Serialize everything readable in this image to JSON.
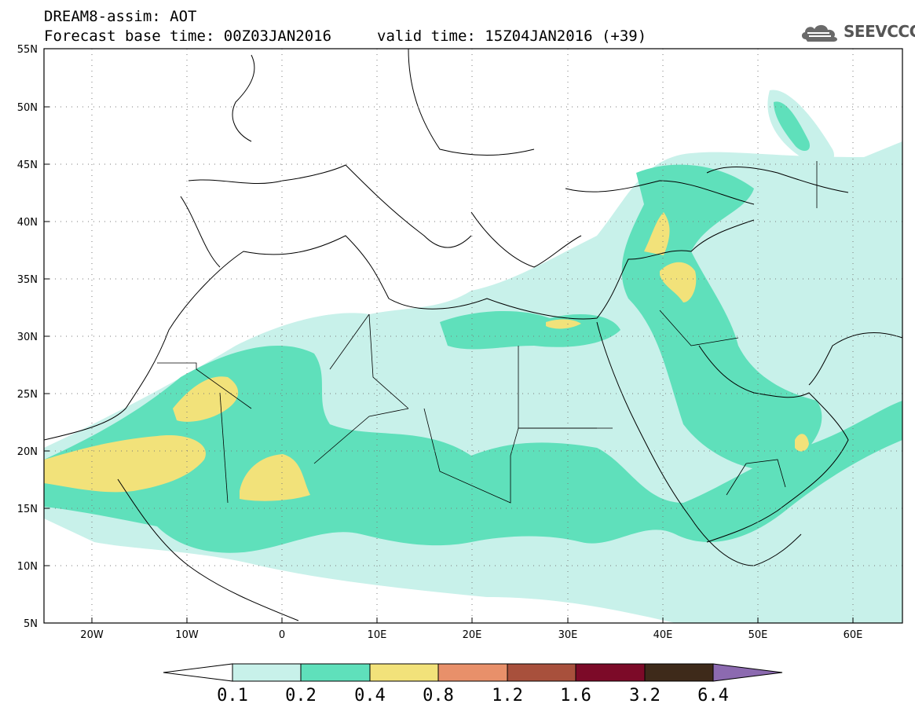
{
  "header": {
    "title": "DREAM8-assim: AOT",
    "base_time": "Forecast base time: 00Z03JAN2016",
    "valid_time": "valid time: 15Z04JAN2016 (+39)"
  },
  "logo": {
    "text": "SEEVCCC",
    "icon": "cloud-icon"
  },
  "map": {
    "lon_ticks": [
      "20W",
      "10W",
      "0",
      "10E",
      "20E",
      "30E",
      "40E",
      "50E",
      "60E"
    ],
    "lat_ticks": [
      "55N",
      "50N",
      "45N",
      "40N",
      "35N",
      "30N",
      "25N",
      "20N",
      "15N",
      "10N",
      "5N"
    ]
  },
  "legend": {
    "levels": [
      "0.1",
      "0.2",
      "0.4",
      "0.8",
      "1.2",
      "1.6",
      "3.2",
      "6.4"
    ],
    "colors": [
      "#ffffff",
      "#c8f1ea",
      "#5fe0bb",
      "#f2e27a",
      "#e8906a",
      "#a8503c",
      "#7c0a28",
      "#3e2a1a",
      "#8c6ab0"
    ]
  }
}
